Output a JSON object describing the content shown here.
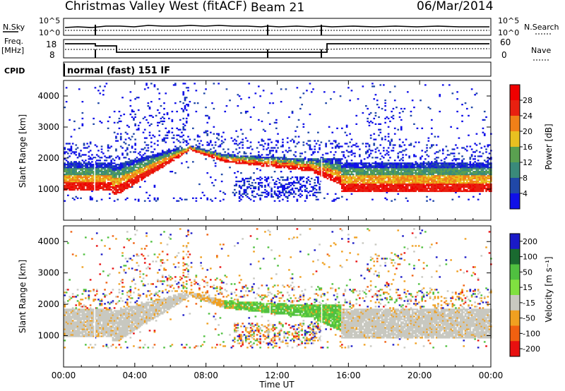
{
  "header": {
    "station": "Christmas Valley West (fitACF)",
    "beam": "Beam 21",
    "date": "06/Mar/2014"
  },
  "strip_labels": {
    "nsky": "N.Sky",
    "nsky_ticks": [
      "10^5",
      "10^0"
    ],
    "nsearch": "N.Search",
    "nsearch_ticks": [
      "10^5",
      "10^0"
    ],
    "freq": "Freq.",
    "freq_unit": "[MHz]",
    "freq_ticks": [
      "18",
      "8"
    ],
    "nave": "Nave",
    "nave_ticks": [
      "60",
      "0"
    ],
    "cpid": "CPID",
    "cpid_value": "normal (fast) 151 IF"
  },
  "chart_data": [
    {
      "type": "heatmap",
      "ylabel": "Slant Range [km]",
      "yticks": [
        "1000",
        "2000",
        "3000",
        "4000"
      ],
      "ylim": [
        0,
        4500
      ],
      "colorbar_label": "Power [dB]",
      "colorbar_ticks": [
        "4",
        "8",
        "12",
        "16",
        "20",
        "24",
        "28"
      ],
      "colorbar_colors": [
        "#1010e8",
        "#2048a8",
        "#3a8a7a",
        "#5aa050",
        "#e8c020",
        "#f08018",
        "#e82010",
        "#f00000"
      ]
    },
    {
      "type": "heatmap",
      "ylabel": "Slant Range [km]",
      "yticks": [
        "1000",
        "2000",
        "3000",
        "4000"
      ],
      "ylim": [
        0,
        4500
      ],
      "colorbar_label": "Velocity [m s⁻¹]",
      "colorbar_ticks": [
        "200",
        "100",
        "50",
        "15",
        "-15",
        "-50",
        "-100",
        "-200"
      ],
      "colorbar_colors": [
        "#1a1ac8",
        "#1a6a30",
        "#50c040",
        "#80e040",
        "#c8c8c0",
        "#f0a020",
        "#f06010",
        "#e81010"
      ]
    }
  ],
  "xaxis": {
    "ticks": [
      "00:00",
      "04:00",
      "08:00",
      "12:00",
      "16:00",
      "20:00",
      "00:00"
    ],
    "label": "Time UT"
  }
}
